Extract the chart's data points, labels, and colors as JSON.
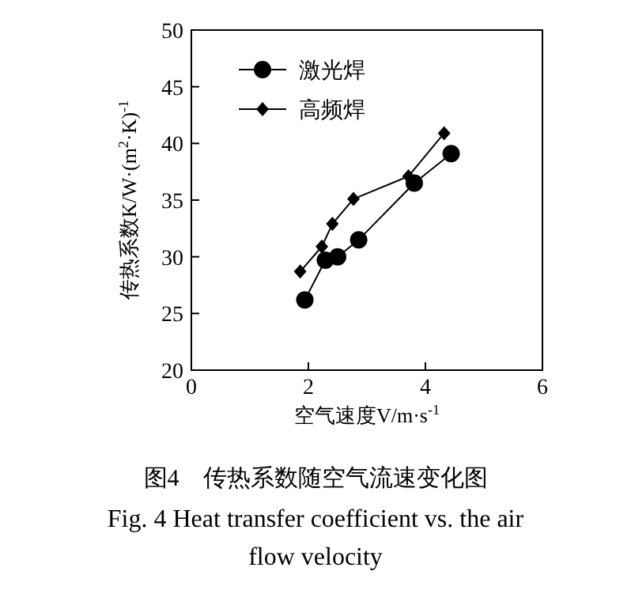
{
  "chart_data": {
    "type": "line",
    "title": "图4　传热系数随空气流速变化图",
    "subtitle": "Fig. 4 Heat transfer coefficient vs. the air flow velocity",
    "xlabel": "空气速度V/m·s$^{-1}$",
    "ylabel": "传热系数K/W·(m$^{2}$·K)$^{-1}$",
    "xlim": [
      0,
      6
    ],
    "ylim": [
      20,
      50
    ],
    "xticks": [
      0,
      2,
      4,
      6
    ],
    "yticks": [
      20,
      25,
      30,
      35,
      40,
      45,
      50
    ],
    "grid": false,
    "legend": "top left",
    "line_style": "solid",
    "series": [
      {
        "name": "激光焊",
        "color": "#000000",
        "marker": "circle",
        "x": [
          1.94,
          2.29,
          2.5,
          2.86,
          3.81,
          4.44
        ],
        "values": [
          26.2,
          29.7,
          30.0,
          31.5,
          36.5,
          39.1
        ]
      },
      {
        "name": "高频焊",
        "color": "#000000",
        "marker": "diamond",
        "x": [
          1.86,
          2.23,
          2.41,
          2.77,
          3.71,
          4.32
        ],
        "values": [
          28.7,
          30.9,
          32.9,
          35.1,
          37.1,
          40.9
        ]
      }
    ]
  }
}
